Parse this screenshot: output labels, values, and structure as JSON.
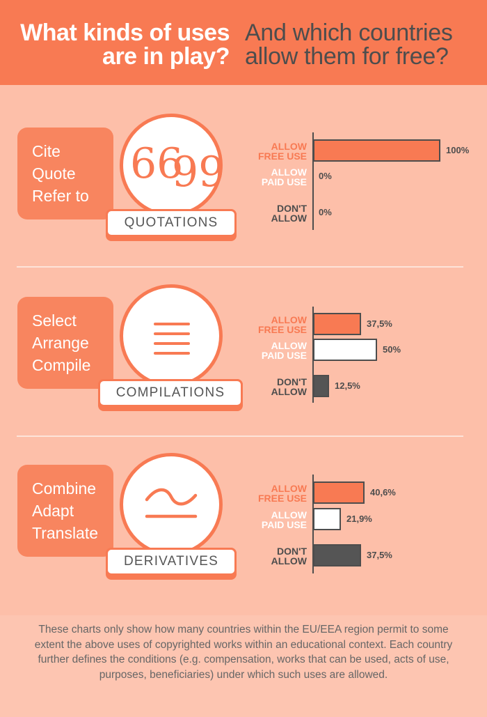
{
  "header": {
    "question_line1": "What kinds of uses",
    "question_line2": "are in play?",
    "answer_line1": "And which countries",
    "answer_line2": "allow them for free?"
  },
  "colors": {
    "header_bg": "#f87a53",
    "background": "#fdbfa9",
    "free_use": "#f87a53",
    "paid_use": "#ffffff",
    "dont_allow": "#555555",
    "axis": "#4d4d4d"
  },
  "sections": [
    {
      "tag": "QUOTATIONS",
      "verbs": [
        "Cite",
        "Quote",
        "Refer to"
      ],
      "icon": "quotation-marks-icon",
      "icon_text": "66 99"
    },
    {
      "tag": "COMPILATIONS",
      "verbs": [
        "Select",
        "Arrange",
        "Compile"
      ],
      "icon": "stacked-lines-icon"
    },
    {
      "tag": "DERIVATIVES",
      "verbs": [
        "Combine",
        "Adapt",
        "Translate"
      ],
      "icon": "wave-line-icon"
    }
  ],
  "legend_labels": {
    "free": [
      "ALLOW",
      "FREE USE"
    ],
    "paid": [
      "ALLOW",
      "PAID USE"
    ],
    "dont": [
      "DON'T",
      "ALLOW"
    ]
  },
  "chart_data": [
    {
      "type": "bar",
      "orientation": "horizontal",
      "categories": [
        "ALLOW FREE USE",
        "ALLOW PAID USE",
        "DON'T ALLOW"
      ],
      "values": [
        100,
        0,
        0
      ],
      "value_labels": [
        "100%",
        "0%",
        "0%"
      ],
      "xlim": [
        0,
        100
      ]
    },
    {
      "type": "bar",
      "orientation": "horizontal",
      "categories": [
        "ALLOW FREE USE",
        "ALLOW PAID USE",
        "DON'T ALLOW"
      ],
      "values": [
        37.5,
        50,
        12.5
      ],
      "value_labels": [
        "37,5%",
        "50%",
        "12,5%"
      ],
      "xlim": [
        0,
        100
      ]
    },
    {
      "type": "bar",
      "orientation": "horizontal",
      "categories": [
        "ALLOW FREE USE",
        "ALLOW PAID USE",
        "DON'T ALLOW"
      ],
      "values": [
        40.6,
        21.9,
        37.5
      ],
      "value_labels": [
        "40,6%",
        "21,9%",
        "37,5%"
      ],
      "xlim": [
        0,
        100
      ]
    }
  ],
  "footnote": "These charts only show how many countries within the EU/EEA region permit to some extent the above uses of copyrighted works within an educational context. Each country further defines the conditions (e.g. compensation, works that can be used, acts of use, purposes, beneficiaries) under which such uses are allowed."
}
